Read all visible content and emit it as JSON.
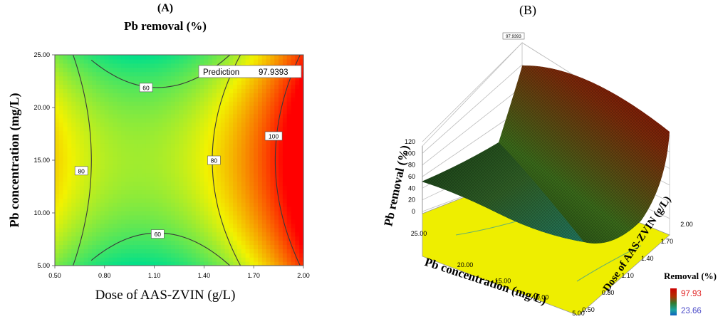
{
  "panel_a": {
    "tag": "(A)",
    "title": "Pb removal (%)",
    "xlabel": "Dose of AAS-ZVIN (g/L)",
    "ylabel": "Pb concentration (mg/L)",
    "prediction_label": "Prediction",
    "prediction_value": "97.9393"
  },
  "panel_b": {
    "tag": "(B)",
    "top_value_label": "97.9393",
    "zlabel": "Pb removal (%)",
    "axis1_label": "Pb concentration (mg/L)",
    "axis2_label": "Dose of AAS-ZVIN (g/L)",
    "legend_title": "Removal (%)",
    "legend_max": "97.93",
    "legend_min": "23.66"
  },
  "colors": {
    "low": "#00e08a",
    "mid": "#f2f200",
    "high": "#ff0000",
    "surface_low": "#0a2e12",
    "surface_high": "#8b0000",
    "floor": "#f0f000"
  },
  "chart_data": [
    {
      "type": "heatmap",
      "chart": "contour",
      "title": "Pb removal (%)",
      "xlabel": "Dose of AAS-ZVIN (g/L)",
      "ylabel": "Pb concentration (mg/L)",
      "x_ticks": [
        "0.50",
        "0.80",
        "1.10",
        "1.40",
        "1.70",
        "2.00"
      ],
      "y_ticks": [
        "5.00",
        "10.00",
        "15.00",
        "20.00",
        "25.00"
      ],
      "xlim": [
        0.5,
        2.0
      ],
      "ylim": [
        5,
        25
      ],
      "contour_levels": [
        {
          "label": "60",
          "x": 1.05,
          "y": 21.9
        },
        {
          "label": "60",
          "x": 1.12,
          "y": 8.0
        },
        {
          "label": "80",
          "x": 0.66,
          "y": 14.0
        },
        {
          "label": "80",
          "x": 1.46,
          "y": 15.0
        },
        {
          "label": "100",
          "x": 1.82,
          "y": 17.3
        }
      ],
      "prediction": 97.9393
    },
    {
      "type": "heatmap",
      "chart": "surface3d",
      "zlabel": "Pb removal (%)",
      "axis1_label": "Pb concentration (mg/L)",
      "axis2_label": "Dose of AAS-ZVIN (g/L)",
      "z_ticks": [
        "0",
        "20",
        "40",
        "60",
        "80",
        "100",
        "120"
      ],
      "axis1_ticks": [
        "25.00",
        "20.00",
        "15.00",
        "10.00",
        "5.00"
      ],
      "axis2_ticks": [
        "0.50",
        "0.80",
        "1.10",
        "1.40",
        "1.70",
        "2.00"
      ],
      "zlim": [
        0,
        120
      ],
      "legend": {
        "title": "Removal (%)",
        "max": 97.93,
        "min": 23.66
      },
      "top_value": 97.9393
    }
  ]
}
